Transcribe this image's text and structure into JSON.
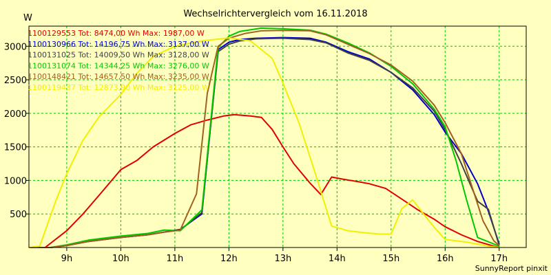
{
  "chart_data": {
    "type": "line",
    "title": "Wechselrichtervergleich vom 16.11.2018",
    "ylabel": "W",
    "xlabel": "",
    "footer": "SunnyReport pinxit",
    "xlim": [
      8.3,
      17.5
    ],
    "ylim": [
      0,
      3300
    ],
    "xticks": [
      9,
      10,
      11,
      12,
      13,
      14,
      15,
      16,
      17
    ],
    "xtick_labels": [
      "9h",
      "10h",
      "11h",
      "12h",
      "13h",
      "14h",
      "15h",
      "16h",
      "17h"
    ],
    "yticks": [
      500,
      1000,
      1500,
      2000,
      2500,
      3000
    ],
    "ytick_labels": [
      "500",
      "1000",
      "1500",
      "2000",
      "2500",
      "3000"
    ],
    "grid": true,
    "legend_position": "top-left",
    "series": [
      {
        "name": "1100129553",
        "label": "1100129553 Tot: 8474,00 Wh Max: 1987,00 W",
        "color": "#e00000",
        "x": [
          8.3,
          8.6,
          9.0,
          9.3,
          9.6,
          10.0,
          10.3,
          10.6,
          11.0,
          11.3,
          11.6,
          11.9,
          12.1,
          12.4,
          12.6,
          12.8,
          13.0,
          13.2,
          13.5,
          13.7,
          13.9,
          14.1,
          14.4,
          14.6,
          14.9,
          15.2,
          15.5,
          15.8,
          16.0,
          16.3,
          16.6,
          16.9,
          17.0
        ],
        "y": [
          0,
          0,
          250,
          500,
          780,
          1160,
          1300,
          1500,
          1700,
          1830,
          1900,
          1960,
          1980,
          1960,
          1940,
          1760,
          1500,
          1250,
          960,
          790,
          1050,
          1020,
          980,
          950,
          880,
          720,
          560,
          420,
          310,
          190,
          90,
          20,
          0
        ]
      },
      {
        "name": "1100130966",
        "label": "1100130966 Tot: 14196,75 Wh Max: 3137,00 W",
        "color": "#0000c8",
        "x": [
          8.3,
          8.7,
          9.0,
          9.4,
          10.0,
          10.5,
          10.8,
          11.1,
          11.5,
          11.8,
          12.0,
          12.2,
          12.5,
          13.0,
          13.5,
          13.8,
          14.2,
          14.6,
          15.0,
          15.4,
          15.8,
          16.0,
          16.3,
          16.6,
          16.8,
          17.0
        ],
        "y": [
          0,
          0,
          30,
          90,
          150,
          190,
          230,
          270,
          500,
          2950,
          3060,
          3100,
          3120,
          3130,
          3120,
          3060,
          2920,
          2810,
          2610,
          2350,
          1980,
          1720,
          1400,
          950,
          540,
          50
        ]
      },
      {
        "name": "1100131025",
        "label": "1100131025 Tot: 14009,50 Wh Max: 3128,00 W",
        "color": "#404040",
        "x": [
          8.3,
          8.7,
          9.0,
          9.4,
          10.0,
          10.5,
          10.8,
          11.1,
          11.5,
          11.8,
          12.0,
          12.2,
          12.5,
          13.0,
          13.5,
          13.8,
          14.2,
          14.6,
          15.0,
          15.4,
          15.8,
          16.0,
          16.3,
          16.6,
          16.8,
          17.0
        ],
        "y": [
          0,
          0,
          30,
          90,
          150,
          190,
          230,
          260,
          520,
          2920,
          3030,
          3080,
          3110,
          3120,
          3100,
          3050,
          2900,
          2790,
          2610,
          2380,
          2030,
          1760,
          1250,
          690,
          570,
          30
        ]
      },
      {
        "name": "1100131074",
        "label": "1100131074 Tot: 14344,25 Wh Max: 3276,00 W",
        "color": "#00c800",
        "x": [
          8.3,
          8.7,
          9.0,
          9.4,
          10.0,
          10.5,
          10.8,
          11.1,
          11.5,
          11.8,
          12.0,
          12.2,
          12.6,
          13.0,
          13.5,
          13.8,
          14.2,
          14.6,
          15.0,
          15.4,
          15.8,
          16.0,
          16.2,
          16.4,
          16.6,
          17.0
        ],
        "y": [
          0,
          0,
          40,
          110,
          170,
          210,
          260,
          250,
          560,
          2980,
          3150,
          3220,
          3270,
          3260,
          3240,
          3180,
          3050,
          2900,
          2700,
          2440,
          2060,
          1800,
          1300,
          700,
          150,
          20
        ]
      },
      {
        "name": "1100148421",
        "label": "1100148421 Tot: 14657,50 Wh Max: 3235,00 W",
        "color": "#a06020",
        "x": [
          8.3,
          8.7,
          9.0,
          9.4,
          10.0,
          10.5,
          10.8,
          11.1,
          11.4,
          11.6,
          11.8,
          12.0,
          12.3,
          12.6,
          13.0,
          13.5,
          13.8,
          14.2,
          14.6,
          15.0,
          15.4,
          15.8,
          16.0,
          16.3,
          16.5,
          16.7,
          16.9,
          17.0
        ],
        "y": [
          0,
          0,
          30,
          90,
          150,
          190,
          230,
          260,
          800,
          2300,
          3000,
          3120,
          3190,
          3230,
          3235,
          3230,
          3170,
          3030,
          2890,
          2720,
          2480,
          2120,
          1860,
          1400,
          900,
          400,
          100,
          30
        ]
      },
      {
        "name": "1100119437",
        "label": "1100119437 Tot: 12873,90 Wh Max: 3125,00 W",
        "color": "#f0f000",
        "x": [
          8.3,
          8.5,
          8.8,
          9.0,
          9.3,
          9.6,
          10.0,
          10.3,
          10.6,
          11.0,
          11.5,
          12.0,
          12.4,
          12.8,
          13.0,
          13.3,
          13.6,
          13.9,
          14.2,
          14.5,
          14.8,
          15.0,
          15.2,
          15.4,
          15.6,
          15.8,
          16.0,
          16.4,
          16.8,
          17.0
        ],
        "y": [
          0,
          20,
          700,
          1100,
          1600,
          1950,
          2280,
          2600,
          2850,
          3000,
          3080,
          3125,
          3080,
          2820,
          2450,
          1850,
          1100,
          320,
          250,
          220,
          200,
          200,
          580,
          710,
          500,
          300,
          120,
          80,
          20,
          0
        ]
      }
    ]
  }
}
